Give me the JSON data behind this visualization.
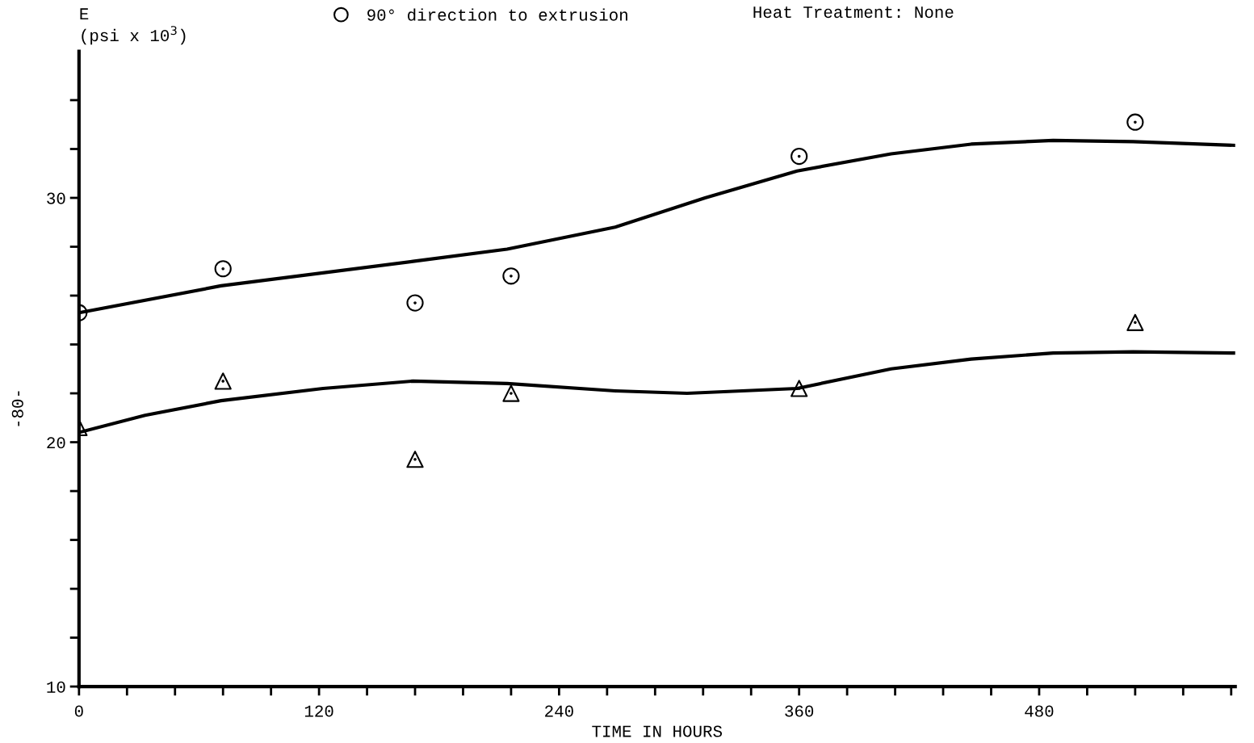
{
  "chart_data": {
    "type": "scatter",
    "ylabel": "E\n(psi x 10$^{3}$)",
    "xlabel": "TIME IN HOURS",
    "annotations": [
      "Heat Treatment: None",
      "-80-"
    ],
    "xlim": [
      0,
      578
    ],
    "ylim": [
      10,
      36
    ],
    "xticks": [
      0,
      {
        "value": 24,
        "label": null
      },
      {
        "value": 48,
        "label": null
      },
      {
        "value": 72,
        "label": null
      },
      {
        "value": 96,
        "label": null
      },
      120,
      {
        "value": 144,
        "label": null
      },
      {
        "value": 168,
        "label": null
      },
      {
        "value": 192,
        "label": null
      },
      {
        "value": 216,
        "label": null
      },
      240,
      {
        "value": 264,
        "label": null
      },
      {
        "value": 288,
        "label": null
      },
      {
        "value": 312,
        "label": null
      },
      {
        "value": 336,
        "label": null
      },
      360,
      {
        "value": 384,
        "label": null
      },
      {
        "value": 408,
        "label": null
      },
      {
        "value": 432,
        "label": null
      },
      {
        "value": 456,
        "label": null
      },
      480,
      {
        "value": 504,
        "label": null
      },
      {
        "value": 528,
        "label": null
      },
      {
        "value": 552,
        "label": null
      },
      {
        "value": 576,
        "label": null
      }
    ],
    "yticks": [
      10,
      {
        "value": 12,
        "label": null
      },
      {
        "value": 14,
        "label": null
      },
      {
        "value": 16,
        "label": null
      },
      {
        "value": 18,
        "label": null
      },
      20,
      {
        "value": 22,
        "label": null
      },
      {
        "value": 24,
        "label": null
      },
      {
        "value": 26,
        "label": null
      },
      {
        "value": 28,
        "label": null
      },
      30,
      {
        "value": 32,
        "label": null
      },
      {
        "value": 34,
        "label": null
      }
    ],
    "grid": false,
    "legend": "top",
    "series": [
      {
        "name": "90° direction to extrusion",
        "marker": "circle",
        "color": "#000000",
        "x": [
          0,
          72,
          168,
          216,
          360,
          528
        ],
        "values": [
          25.3,
          27.1,
          25.7,
          26.8,
          31.7,
          33.1
        ]
      },
      {
        "marker": "triangle",
        "color": "#000000",
        "x": [
          0,
          72,
          168,
          216,
          360,
          528
        ],
        "values": [
          20.6,
          22.5,
          19.3,
          22.0,
          22.2,
          24.9
        ]
      },
      {
        "type": "line",
        "color": "#000000",
        "line_style": "solid",
        "x": [
          0,
          71,
          167,
          214,
          268,
          313,
          359,
          406,
          446,
          487,
          527,
          578
        ],
        "values": [
          25.3,
          26.4,
          27.4,
          27.9,
          28.8,
          30.0,
          31.1,
          31.8,
          32.2,
          32.35,
          32.3,
          32.15
        ]
      },
      {
        "type": "line",
        "color": "#000000",
        "line_style": "solid",
        "x": [
          0,
          33,
          71,
          122,
          167,
          214,
          268,
          304,
          359,
          406,
          446,
          487,
          527,
          578
        ],
        "values": [
          20.4,
          21.1,
          21.7,
          22.2,
          22.5,
          22.4,
          22.1,
          22.0,
          22.2,
          23.0,
          23.4,
          23.65,
          23.7,
          23.65
        ]
      }
    ]
  }
}
